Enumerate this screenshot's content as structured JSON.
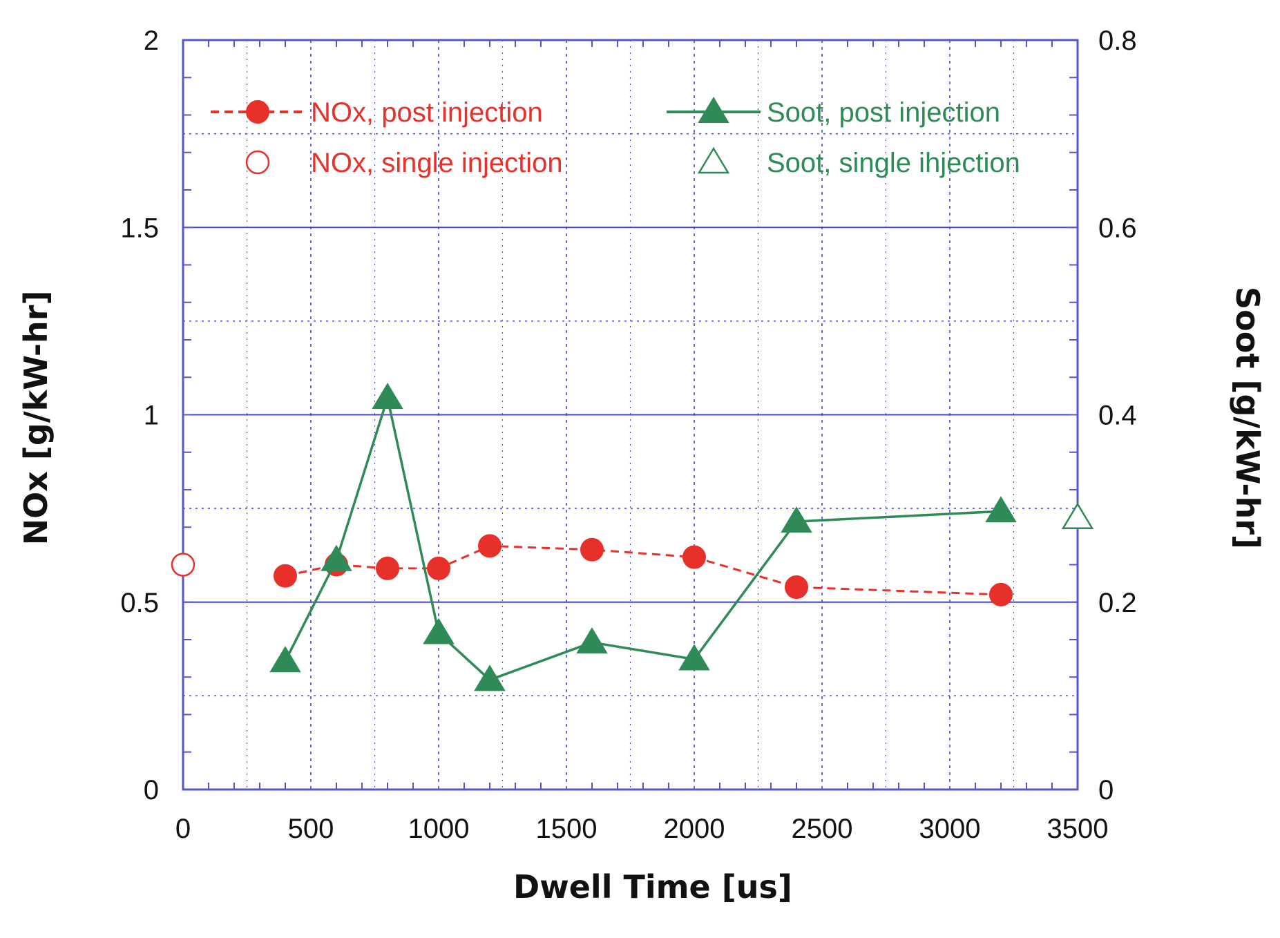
{
  "chart_data": {
    "type": "line",
    "title": "",
    "xlabel": "Dwell Time [us]",
    "ylabel": "NOx [g/kW-hr]",
    "y2label": "Soot [g/kW-hr]",
    "xlim": [
      0,
      3500
    ],
    "ylim": [
      0,
      2
    ],
    "y2lim": [
      0,
      0.8
    ],
    "x_ticks": [
      0,
      500,
      1000,
      1500,
      2000,
      2500,
      3000,
      3500
    ],
    "x_tick_labels": [
      "0",
      "500",
      "1000",
      "1500",
      "2000",
      "2500",
      "3000",
      "3500"
    ],
    "y_ticks": [
      0,
      0.5,
      1,
      1.5,
      2
    ],
    "y_tick_labels": [
      "0",
      "0.5",
      "1",
      "1.5",
      "2"
    ],
    "y2_ticks": [
      0,
      0.2,
      0.4,
      0.6,
      0.8
    ],
    "y2_tick_labels": [
      "0",
      "0.2",
      "0.4",
      "0.6",
      "0.8"
    ],
    "grid": true,
    "legend_position": "top",
    "colors": {
      "nox": "#e8302a",
      "soot": "#2e8b57",
      "grid": "#4444cc",
      "frame": "#5555cc"
    },
    "series": [
      {
        "name": "NOx, post injection",
        "axis": "left",
        "marker": "filled-circle",
        "line": "dashed",
        "color": "#e8302a",
        "x": [
          400,
          600,
          800,
          1000,
          1200,
          1600,
          2000,
          2400,
          3200
        ],
        "y": [
          0.57,
          0.6,
          0.59,
          0.59,
          0.65,
          0.64,
          0.62,
          0.54,
          0.52
        ]
      },
      {
        "name": "NOx, single injection",
        "axis": "left",
        "marker": "open-circle",
        "line": "none",
        "color": "#e8302a",
        "x": [
          0
        ],
        "y": [
          0.6
        ]
      },
      {
        "name": "Soot, post injection",
        "axis": "right",
        "marker": "filled-triangle",
        "line": "solid",
        "color": "#2e8b57",
        "x": [
          400,
          600,
          800,
          1000,
          1200,
          1600,
          2000,
          2400,
          3200
        ],
        "y": [
          0.137,
          0.245,
          0.418,
          0.167,
          0.117,
          0.157,
          0.139,
          0.286,
          0.297
        ]
      },
      {
        "name": "Soot, single ihjection",
        "axis": "right",
        "marker": "open-triangle",
        "line": "none",
        "color": "#2e8b57",
        "x": [
          3500
        ],
        "y": [
          0.29
        ]
      }
    ],
    "legend": [
      "NOx, post injection",
      "Soot, post injection",
      "NOx, single injection",
      "Soot, single ihjection"
    ]
  }
}
